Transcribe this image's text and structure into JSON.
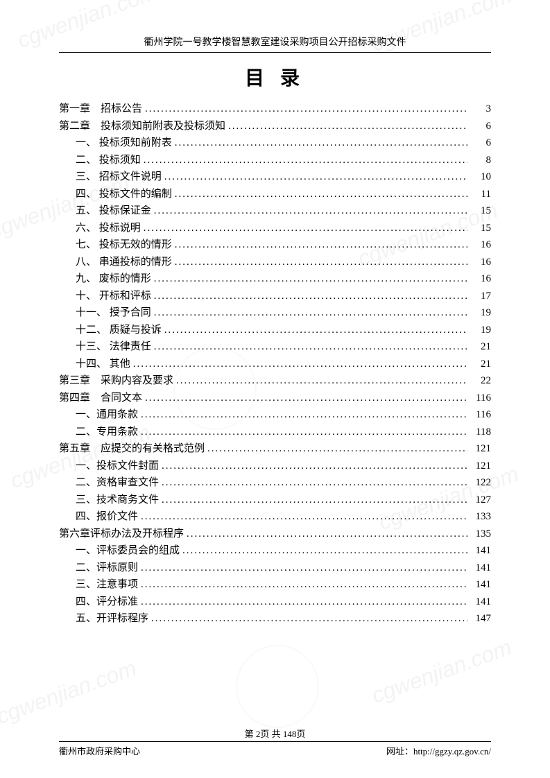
{
  "header": {
    "title": "衢州学院一号教学楼智慧教室建设采购项目公开招标采购文件"
  },
  "toc": {
    "title": "目 录",
    "entries": [
      {
        "label": "第一章 招标公告",
        "page": "3",
        "sub": false
      },
      {
        "label": "第二章 投标须知前附表及投标须知",
        "page": "6",
        "sub": false
      },
      {
        "label": "一、 投标须知前附表",
        "page": "6",
        "sub": true
      },
      {
        "label": "二、 投标须知",
        "page": "8",
        "sub": true
      },
      {
        "label": "三、 招标文件说明",
        "page": "10",
        "sub": true
      },
      {
        "label": "四、 投标文件的编制",
        "page": "11",
        "sub": true
      },
      {
        "label": "五、 投标保证金",
        "page": "15",
        "sub": true
      },
      {
        "label": "六、 投标说明",
        "page": "15",
        "sub": true
      },
      {
        "label": "七、 投标无效的情形",
        "page": "16",
        "sub": true
      },
      {
        "label": "八、 串通投标的情形",
        "page": "16",
        "sub": true
      },
      {
        "label": "九、 废标的情形",
        "page": "16",
        "sub": true
      },
      {
        "label": "十、 开标和评标",
        "page": "17",
        "sub": true
      },
      {
        "label": "十一、 授予合同",
        "page": "19",
        "sub": true
      },
      {
        "label": "十二、 质疑与投诉",
        "page": "19",
        "sub": true
      },
      {
        "label": "十三、 法律责任",
        "page": "21",
        "sub": true
      },
      {
        "label": "十四、 其他",
        "page": "21",
        "sub": true
      },
      {
        "label": "第三章 采购内容及要求",
        "page": "22",
        "sub": false
      },
      {
        "label": "第四章 合同文本",
        "page": "116",
        "sub": false
      },
      {
        "label": "一、通用条款",
        "page": "116",
        "sub": true
      },
      {
        "label": "二、专用条款",
        "page": "118",
        "sub": true
      },
      {
        "label": "第五章 应提交的有关格式范例",
        "page": "121",
        "sub": false
      },
      {
        "label": "一、投标文件封面",
        "page": "121",
        "sub": true
      },
      {
        "label": "二、资格审查文件",
        "page": "122",
        "sub": true
      },
      {
        "label": "三、技术商务文件",
        "page": "127",
        "sub": true
      },
      {
        "label": "四、报价文件",
        "page": "133",
        "sub": true
      },
      {
        "label": "第六章评标办法及开标程序",
        "page": "135",
        "sub": false
      },
      {
        "label": "一、评标委员会的组成",
        "page": "141",
        "sub": true
      },
      {
        "label": "二、评标原则",
        "page": "141",
        "sub": true
      },
      {
        "label": "三、注意事项",
        "page": "141",
        "sub": true
      },
      {
        "label": "四、评分标准",
        "page": "141",
        "sub": true
      },
      {
        "label": "五、开评标程序",
        "page": "147",
        "sub": true
      }
    ]
  },
  "pageNumber": "第 2页 共 148页",
  "footer": {
    "left": "衢州市政府采购中心",
    "right": "网址：http://ggzy.qz.gov.cn/"
  },
  "watermark": "cgwenjian.com"
}
